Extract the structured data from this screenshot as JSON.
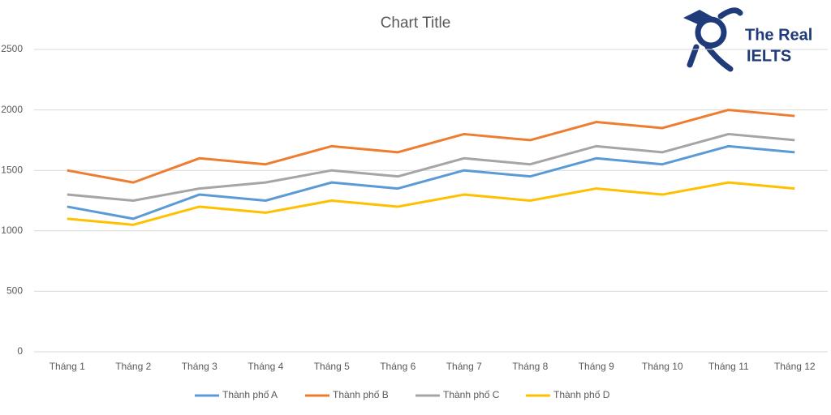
{
  "chart_data": {
    "type": "line",
    "title": "Chart Title",
    "categories": [
      "Tháng 1",
      "Tháng 2",
      "Tháng 3",
      "Tháng 4",
      "Tháng 5",
      "Tháng 6",
      "Tháng 7",
      "Tháng 8",
      "Tháng 9",
      "Tháng 10",
      "Tháng 11",
      "Tháng 12"
    ],
    "series": [
      {
        "name": "Thành phố A",
        "color": "#5b9bd5",
        "values": [
          1200,
          1100,
          1300,
          1250,
          1400,
          1350,
          1500,
          1450,
          1600,
          1550,
          1700,
          1650
        ]
      },
      {
        "name": "Thành phố B",
        "color": "#ed7d31",
        "values": [
          1500,
          1400,
          1600,
          1550,
          1700,
          1650,
          1800,
          1750,
          1900,
          1850,
          2000,
          1950
        ]
      },
      {
        "name": "Thành phố C",
        "color": "#a5a5a5",
        "values": [
          1300,
          1250,
          1350,
          1400,
          1500,
          1450,
          1600,
          1550,
          1700,
          1650,
          1800,
          1750
        ]
      },
      {
        "name": "Thành phố D",
        "color": "#ffc000",
        "values": [
          1100,
          1050,
          1200,
          1150,
          1250,
          1200,
          1300,
          1250,
          1350,
          1300,
          1400,
          1350
        ]
      }
    ],
    "ylim": [
      0,
      2500
    ],
    "yticks": [
      0,
      500,
      1000,
      1500,
      2000,
      2500
    ],
    "grid": true,
    "legend": "bottom"
  },
  "logo": {
    "line1": "The Real",
    "line2": "IELTS"
  }
}
